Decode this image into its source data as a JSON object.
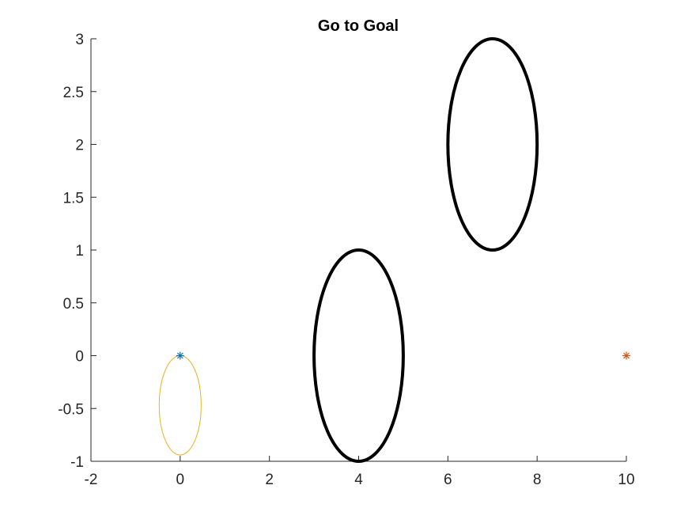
{
  "chart_data": {
    "type": "scatter",
    "title": "Go to Goal",
    "xlabel": "",
    "ylabel": "",
    "xlim": [
      -2,
      10
    ],
    "ylim": [
      -1,
      3
    ],
    "xticks": [
      -2,
      0,
      2,
      4,
      6,
      8,
      10
    ],
    "yticks": [
      -1,
      -0.5,
      0,
      0.5,
      1,
      1.5,
      2,
      2.5,
      3
    ],
    "xtick_labels": [
      "-2",
      "0",
      "2",
      "4",
      "6",
      "8",
      "10"
    ],
    "ytick_labels": [
      "-1",
      "-0.5",
      "0",
      "0.5",
      "1",
      "1.5",
      "2",
      "2.5",
      "3"
    ],
    "grid": false,
    "obstacles": [
      {
        "cx": 4,
        "cy": 0,
        "rx": 1,
        "ry": 1,
        "color": "#000000"
      },
      {
        "cx": 7,
        "cy": 2,
        "rx": 1,
        "ry": 1,
        "color": "#000000"
      }
    ],
    "path_ellipse": {
      "cx": 0,
      "cy": -0.47,
      "rx": 0.47,
      "ry": 0.47,
      "color": "#EDB120"
    },
    "markers": [
      {
        "x": 0,
        "y": 0,
        "symbol": "*",
        "color": "#0072BD"
      },
      {
        "x": 10,
        "y": 0,
        "symbol": "*",
        "color": "#D95319"
      }
    ]
  }
}
